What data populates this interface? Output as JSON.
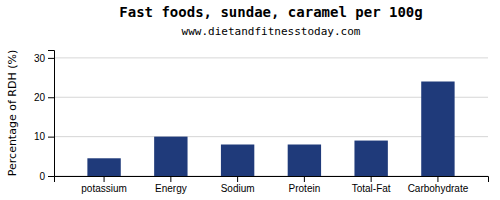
{
  "chart_data": {
    "type": "bar",
    "title": "Fast foods, sundae, caramel per 100g",
    "subtitle": "www.dietandfitnesstoday.com",
    "ylabel": "Percentage of RDH (%)",
    "categories": [
      "potassium",
      "Energy",
      "Sodium",
      "Protein",
      "Total-Fat",
      "Carbohydrate"
    ],
    "values": [
      4.5,
      10.0,
      8.0,
      8.0,
      9.0,
      24.0
    ],
    "color": "#1F3A7A",
    "ylim": [
      0,
      32
    ],
    "yticks": [
      0,
      10,
      20,
      30
    ],
    "grid": true
  }
}
